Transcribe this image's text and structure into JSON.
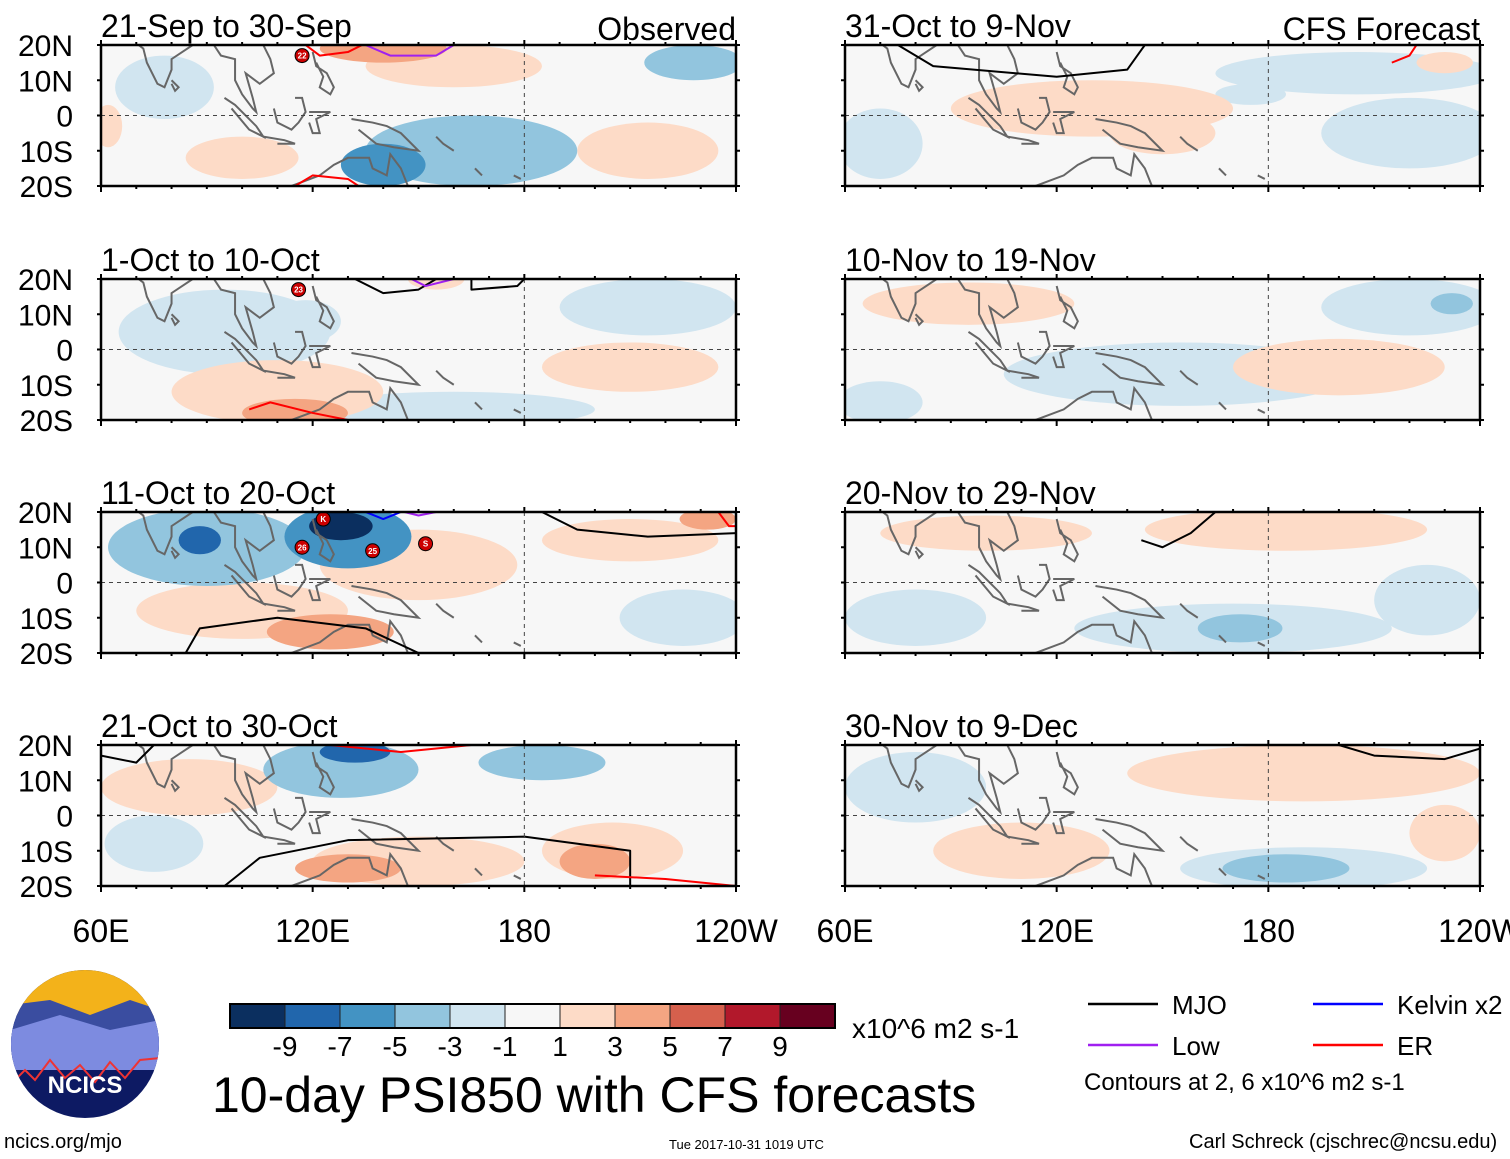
{
  "chart_data": {
    "type": "heatmap",
    "title": "10-day PSI850 with CFS forecasts",
    "units": "x10^6 m2 s-1",
    "column_labels": {
      "left": "Observed",
      "right": "CFS Forecast"
    },
    "lat_ticks": [
      "20N",
      "10N",
      "0",
      "10S",
      "20S"
    ],
    "lon_ticks": [
      "60E",
      "120E",
      "180",
      "120W"
    ],
    "lon_range": [
      60,
      240
    ],
    "lat_range": [
      -20,
      20
    ],
    "colorbar": {
      "ticks": [
        "-9",
        "-7",
        "-5",
        "-3",
        "-1",
        "1",
        "3",
        "5",
        "7",
        "9"
      ],
      "colors": [
        "#0b2f5f",
        "#2166ac",
        "#4393c3",
        "#92c5de",
        "#d1e5f0",
        "#f7f7f7",
        "#fddbc7",
        "#f4a582",
        "#d6604d",
        "#b2182b",
        "#67001f"
      ]
    },
    "legend": [
      {
        "label": "MJO",
        "color": "#000000"
      },
      {
        "label": "Kelvin x2",
        "color": "#0000ff"
      },
      {
        "label": "Low",
        "color": "#a020f0"
      },
      {
        "label": "ER",
        "color": "#ff0000"
      }
    ],
    "contour_note": "Contours at 2, 6 x10^6 m2 s-1",
    "panels": [
      {
        "title": "21-Sep to 30-Sep",
        "tag": "Observed",
        "col": 0,
        "row": 0,
        "anomalies": [
          [
            165,
            -10,
            30,
            10,
            -3
          ],
          [
            140,
            -14,
            12,
            6,
            -6
          ],
          [
            228,
            15,
            14,
            5,
            -4
          ],
          [
            78,
            8,
            14,
            9,
            -2
          ],
          [
            140,
            19,
            18,
            4,
            4
          ],
          [
            160,
            14,
            25,
            6,
            2
          ],
          [
            215,
            -10,
            20,
            8,
            2
          ],
          [
            100,
            -12,
            16,
            6,
            2
          ],
          [
            62,
            -3,
            4,
            6,
            2
          ]
        ],
        "contours": [
          {
            "kind": "ER",
            "pts": [
              [
                118,
                20
              ],
              [
                122,
                17
              ],
              [
                130,
                18
              ],
              [
                134,
                20
              ]
            ]
          },
          {
            "kind": "Low",
            "pts": [
              [
                135,
                20
              ],
              [
                142,
                17
              ],
              [
                155,
                17
              ],
              [
                160,
                20
              ]
            ]
          },
          {
            "kind": "ER",
            "pts": [
              [
                115,
                -20
              ],
              [
                120,
                -17
              ],
              [
                130,
                -18
              ],
              [
                133,
                -20
              ]
            ]
          }
        ],
        "cyclones": [
          "22"
        ],
        "cyclone_pos": [
          [
            117,
            17
          ]
        ]
      },
      {
        "title": "1-Oct to 10-Oct",
        "tag": "",
        "col": 0,
        "row": 1,
        "anomalies": [
          [
            95,
            5,
            30,
            12,
            -2
          ],
          [
            118,
            8,
            10,
            6,
            -2
          ],
          [
            160,
            -17,
            40,
            5,
            -2
          ],
          [
            215,
            12,
            25,
            8,
            -2
          ],
          [
            110,
            -12,
            30,
            9,
            2
          ],
          [
            115,
            -18,
            15,
            4,
            4
          ],
          [
            210,
            -5,
            25,
            7,
            2
          ],
          [
            155,
            20,
            8,
            3,
            2
          ]
        ],
        "contours": [
          {
            "kind": "ER",
            "pts": [
              [
                102,
                -17
              ],
              [
                108,
                -15
              ],
              [
                120,
                -18
              ],
              [
                130,
                -20
              ]
            ]
          },
          {
            "kind": "MJO",
            "pts": [
              [
                132,
                20
              ],
              [
                140,
                16
              ],
              [
                150,
                17
              ],
              [
                155,
                20
              ]
            ]
          },
          {
            "kind": "Low",
            "pts": [
              [
                148,
                20
              ],
              [
                152,
                18
              ],
              [
                160,
                20
              ]
            ]
          },
          {
            "kind": "MJO",
            "pts": [
              [
                165,
                20
              ],
              [
                165,
                17
              ],
              [
                178,
                18
              ],
              [
                180,
                20
              ]
            ]
          }
        ],
        "cyclones": [
          "23"
        ],
        "cyclone_pos": [
          [
            116,
            17
          ]
        ]
      },
      {
        "title": "11-Oct to 20-Oct",
        "tag": "",
        "col": 0,
        "row": 2,
        "anomalies": [
          [
            90,
            10,
            28,
            11,
            -4
          ],
          [
            88,
            12,
            6,
            4,
            -7
          ],
          [
            130,
            13,
            18,
            9,
            -5
          ],
          [
            128,
            16,
            9,
            4,
            -9
          ],
          [
            150,
            5,
            28,
            10,
            2
          ],
          [
            225,
            -10,
            18,
            8,
            -2
          ],
          [
            210,
            12,
            25,
            6,
            2
          ],
          [
            232,
            18,
            8,
            3,
            4
          ],
          [
            100,
            -8,
            30,
            8,
            2
          ],
          [
            125,
            -14,
            18,
            5,
            4
          ]
        ],
        "contours": [
          {
            "kind": "MJO",
            "pts": [
              [
                84,
                -20
              ],
              [
                88,
                -13
              ],
              [
                110,
                -10
              ],
              [
                135,
                -13
              ],
              [
                150,
                -20
              ]
            ]
          },
          {
            "kind": "MJO",
            "pts": [
              [
                185,
                20
              ],
              [
                195,
                15
              ],
              [
                215,
                13
              ],
              [
                240,
                14
              ]
            ]
          },
          {
            "kind": "Kelvin",
            "pts": [
              [
                135,
                20
              ],
              [
                140,
                18
              ],
              [
                145,
                20
              ]
            ]
          },
          {
            "kind": "Low",
            "pts": [
              [
                146,
                20
              ],
              [
                150,
                19
              ],
              [
                155,
                20
              ]
            ]
          },
          {
            "kind": "ER",
            "pts": [
              [
                235,
                20
              ],
              [
                238,
                16
              ],
              [
                240,
                16
              ]
            ]
          }
        ],
        "cyclones": [
          "K",
          "26",
          "25",
          "S"
        ],
        "cyclone_pos": [
          [
            123,
            18
          ],
          [
            117,
            10
          ],
          [
            137,
            9
          ],
          [
            152,
            11
          ]
        ]
      },
      {
        "title": "21-Oct to 30-Oct",
        "tag": "",
        "col": 0,
        "row": 3,
        "anomalies": [
          [
            128,
            13,
            22,
            8,
            -4
          ],
          [
            132,
            18,
            10,
            3,
            -8
          ],
          [
            185,
            15,
            18,
            5,
            -4
          ],
          [
            75,
            -8,
            14,
            8,
            -2
          ],
          [
            85,
            8,
            25,
            8,
            2
          ],
          [
            150,
            -13,
            30,
            7,
            3
          ],
          [
            205,
            -10,
            20,
            8,
            3
          ],
          [
            130,
            -15,
            15,
            4,
            5
          ],
          [
            200,
            -13,
            10,
            5,
            5
          ]
        ],
        "contours": [
          {
            "kind": "MJO",
            "pts": [
              [
                95,
                -20
              ],
              [
                105,
                -12
              ],
              [
                130,
                -7
              ],
              [
                180,
                -6
              ],
              [
                210,
                -10
              ],
              [
                210,
                -20
              ]
            ]
          },
          {
            "kind": "MJO",
            "pts": [
              [
                60,
                17
              ],
              [
                70,
                15
              ],
              [
                75,
                20
              ]
            ]
          },
          {
            "kind": "ER",
            "pts": [
              [
                125,
                20
              ],
              [
                145,
                18
              ],
              [
                165,
                20
              ]
            ]
          },
          {
            "kind": "ER",
            "pts": [
              [
                200,
                -17
              ],
              [
                220,
                -18
              ],
              [
                240,
                -20
              ]
            ]
          }
        ],
        "cyclones": [],
        "cyclone_pos": []
      },
      {
        "title": "31-Oct to 9-Nov",
        "tag": "CFS Forecast",
        "col": 1,
        "row": 0,
        "anomalies": [
          [
            205,
            12,
            40,
            6,
            -2
          ],
          [
            175,
            6,
            10,
            3,
            -2
          ],
          [
            70,
            -8,
            12,
            10,
            -2
          ],
          [
            130,
            2,
            40,
            8,
            2
          ],
          [
            150,
            -5,
            15,
            6,
            3
          ],
          [
            220,
            -5,
            25,
            10,
            -2
          ],
          [
            230,
            15,
            8,
            3,
            2
          ]
        ],
        "contours": [
          {
            "kind": "MJO",
            "pts": [
              [
                75,
                20
              ],
              [
                85,
                14
              ],
              [
                120,
                11
              ],
              [
                140,
                13
              ],
              [
                145,
                20
              ]
            ]
          },
          {
            "kind": "ER",
            "pts": [
              [
                215,
                15
              ],
              [
                220,
                17
              ],
              [
                222,
                20
              ]
            ]
          }
        ],
        "cyclones": [],
        "cyclone_pos": []
      },
      {
        "title": "10-Nov to 19-Nov",
        "tag": "",
        "col": 1,
        "row": 1,
        "anomalies": [
          [
            95,
            13,
            30,
            6,
            2
          ],
          [
            155,
            -7,
            50,
            9,
            -2
          ],
          [
            220,
            12,
            25,
            8,
            -2
          ],
          [
            232,
            13,
            6,
            3,
            -4
          ],
          [
            200,
            -5,
            30,
            8,
            2
          ],
          [
            70,
            -15,
            12,
            6,
            -2
          ]
        ],
        "contours": [],
        "cyclones": [],
        "cyclone_pos": []
      },
      {
        "title": "20-Nov to 29-Nov",
        "tag": "",
        "col": 1,
        "row": 2,
        "anomalies": [
          [
            100,
            14,
            30,
            5,
            2
          ],
          [
            185,
            15,
            40,
            6,
            2
          ],
          [
            170,
            -13,
            45,
            7,
            -2
          ],
          [
            172,
            -13,
            12,
            4,
            -4
          ],
          [
            225,
            -5,
            15,
            10,
            -2
          ],
          [
            80,
            -10,
            20,
            8,
            -2
          ]
        ],
        "contours": [
          {
            "kind": "MJO",
            "pts": [
              [
                144,
                12
              ],
              [
                150,
                10
              ],
              [
                158,
                14
              ],
              [
                165,
                20
              ]
            ]
          }
        ],
        "cyclones": [],
        "cyclone_pos": []
      },
      {
        "title": "30-Nov to 9-Dec",
        "tag": "",
        "col": 1,
        "row": 3,
        "anomalies": [
          [
            80,
            8,
            20,
            10,
            -2
          ],
          [
            190,
            12,
            50,
            8,
            2
          ],
          [
            190,
            -15,
            35,
            6,
            -2
          ],
          [
            185,
            -15,
            18,
            4,
            -4
          ],
          [
            110,
            -10,
            25,
            8,
            2
          ],
          [
            230,
            -5,
            10,
            8,
            2
          ]
        ],
        "contours": [
          {
            "kind": "MJO",
            "pts": [
              [
                200,
                20
              ],
              [
                210,
                17
              ],
              [
                230,
                16
              ],
              [
                240,
                19
              ]
            ]
          }
        ],
        "cyclones": [],
        "cyclone_pos": []
      }
    ]
  },
  "footer": {
    "logo_text": "NCICS",
    "website": "ncics.org/mjo",
    "timestamp": "Tue 2017-10-31 1019 UTC",
    "author": "Carl Schreck (cjschrec@ncsu.edu)"
  }
}
